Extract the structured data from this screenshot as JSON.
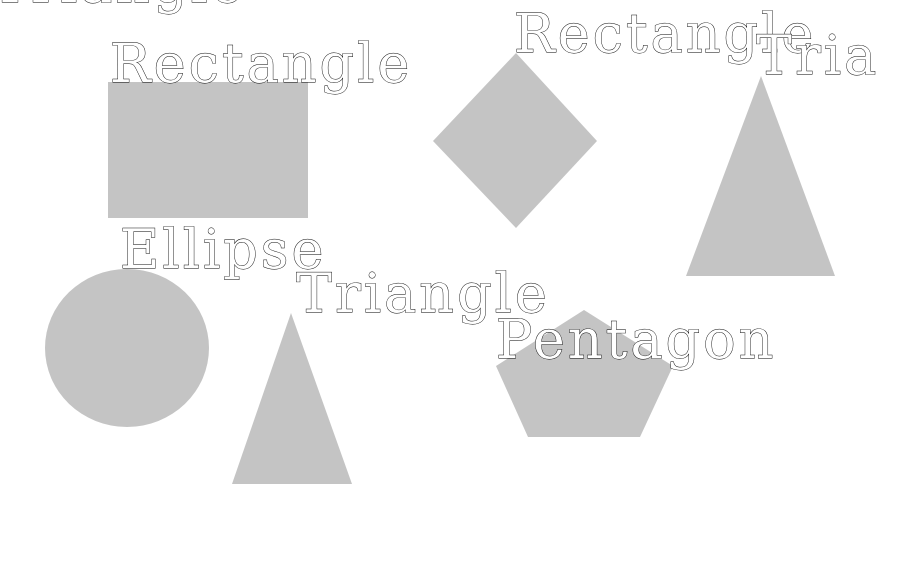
{
  "colors": {
    "shape_fill": "#c4c4c4",
    "background": "#ffffff",
    "label_stroke": "#000000"
  },
  "labels": {
    "top_left_cutoff": "Triangle",
    "rectangle_1": "Rectangle",
    "rectangle_2": "Rectangle",
    "triangle_1": "Tria",
    "ellipse": "Ellipse",
    "triangle_2": "Triangle",
    "pentagon": "Pentagon"
  }
}
